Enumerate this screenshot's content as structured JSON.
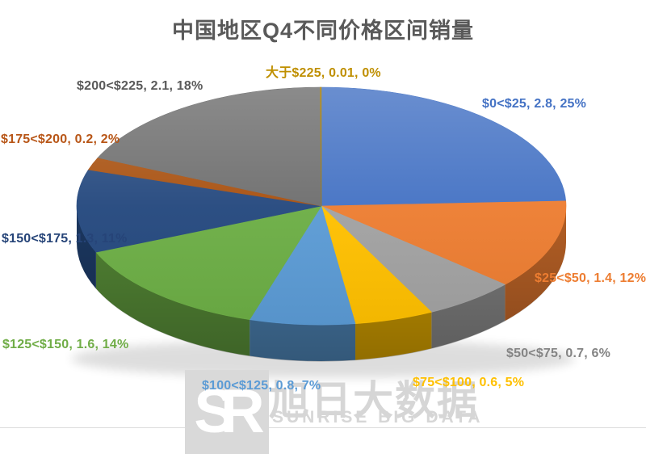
{
  "chart_data": {
    "type": "pie",
    "style": "3d",
    "title": "中国地区Q4不同价格区间销量",
    "title_color": "#595959",
    "legend": "none",
    "label_format": "category, value, percent",
    "slices": [
      {
        "category": "$0<$25",
        "value": 2.8,
        "percent": "25%",
        "label": "$0<$25, 2.8, 25%",
        "color": "#4472C4",
        "label_color": "#4472C4"
      },
      {
        "category": "$25<$50",
        "value": 1.4,
        "percent": "12%",
        "label": "$25<$50, 1.4, 12%",
        "color": "#ED7D31",
        "label_color": "#ED7D31"
      },
      {
        "category": "$50<$75",
        "value": 0.7,
        "percent": "6%",
        "label": "$50<$75, 0.7, 6%",
        "color": "#A2A2A2",
        "label_color": "#848484"
      },
      {
        "category": "$75<$100",
        "value": 0.6,
        "percent": "5%",
        "label": "$75<$100, 0.6, 5%",
        "color": "#FFC000",
        "label_color": "#FFC000"
      },
      {
        "category": "$100<$125",
        "value": 0.8,
        "percent": "7%",
        "label": "$100<$125, 0.8, 7%",
        "color": "#5B9BD5",
        "label_color": "#5B9BD5"
      },
      {
        "category": "$125<$150",
        "value": 1.6,
        "percent": "14%",
        "label": "$125<$150, 1.6, 14%",
        "color": "#6CAE45",
        "label_color": "#70AD47"
      },
      {
        "category": "$150<$175",
        "value": 1.3,
        "percent": "11%",
        "label": "$150<$175, 1.3, 11%",
        "color": "#24487E",
        "label_color": "#264478"
      },
      {
        "category": "$175<$200",
        "value": 0.2,
        "percent": "2%",
        "label": "$175<$200, 0.2, 2%",
        "color": "#A8500F",
        "label_color": "#B85617"
      },
      {
        "category": "$200<$225",
        "value": 2.1,
        "percent": "18%",
        "label": "$200<$225, 2.1, 18%",
        "color": "#6E6E6E",
        "label_color": "#595959"
      },
      {
        "category": "大于$225",
        "value": 0.01,
        "percent": "0%",
        "label": "大于$225, 0.01, 0%",
        "color": "#A07800",
        "label_color": "#BF8F00"
      }
    ]
  },
  "watermark": {
    "logo_text": "SR",
    "cn": "旭日大数据",
    "en": "SUNRISE BIG DATA",
    "color": "#D6D6D6",
    "logo_bg": "#D9D9D9"
  }
}
